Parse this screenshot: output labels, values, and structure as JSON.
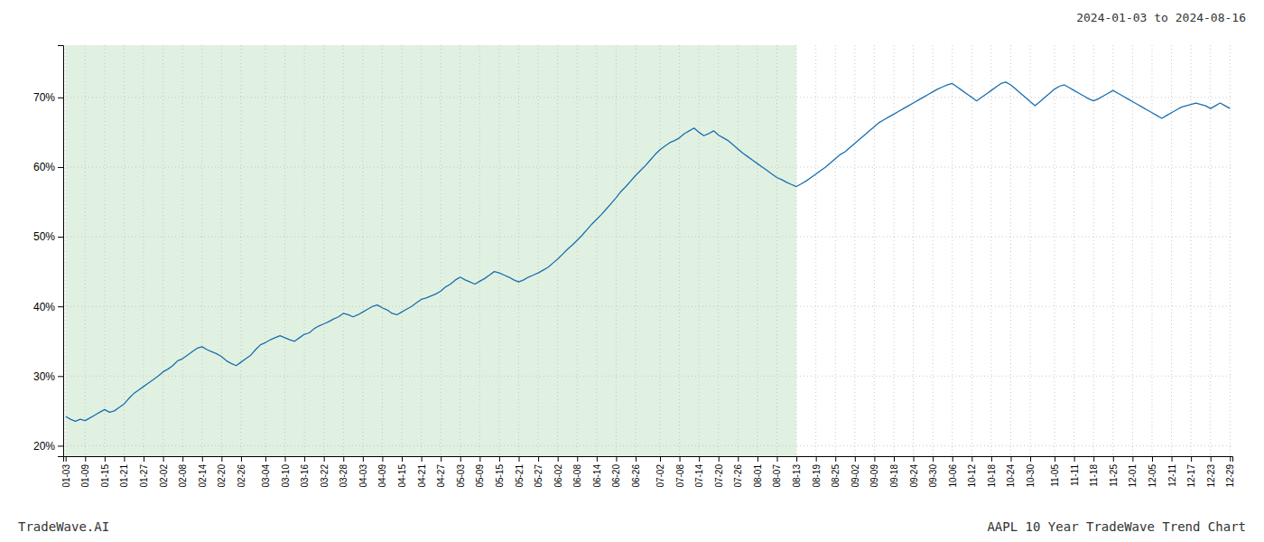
{
  "chart_data": {
    "type": "line",
    "title": "2024-01-03 to 2024-08-16",
    "annotations": [
      "TradeWave.AI",
      "AAPL 10 Year TradeWave Trend Chart"
    ],
    "color": "#1a6faf",
    "grid": true,
    "ylim": [
      0.185,
      0.775
    ],
    "yticks": [
      {
        "value": 0.2,
        "label": "20%"
      },
      {
        "value": 0.3,
        "label": "30%"
      },
      {
        "value": 0.4,
        "label": "40%"
      },
      {
        "value": 0.5,
        "label": "50%"
      },
      {
        "value": 0.6,
        "label": "60%"
      },
      {
        "value": 0.7,
        "label": "70%"
      }
    ],
    "shade": {
      "from": "01-03",
      "to": "08-13",
      "color": "#c8e6c8"
    },
    "categories": [
      "01-03",
      null,
      null,
      null,
      "01-09",
      null,
      null,
      null,
      "01-15",
      null,
      null,
      null,
      "01-21",
      null,
      null,
      null,
      "01-27",
      null,
      null,
      null,
      "02-02",
      null,
      null,
      null,
      "02-08",
      null,
      null,
      null,
      "02-14",
      null,
      null,
      null,
      "02-20",
      null,
      null,
      null,
      "02-26",
      null,
      null,
      null,
      null,
      "03-04",
      null,
      null,
      null,
      "03-10",
      null,
      null,
      null,
      "03-16",
      null,
      null,
      null,
      "03-22",
      null,
      null,
      null,
      "03-28",
      null,
      null,
      null,
      "04-03",
      null,
      null,
      null,
      "04-09",
      null,
      null,
      null,
      "04-15",
      null,
      null,
      null,
      "04-21",
      null,
      null,
      null,
      "04-27",
      null,
      null,
      null,
      "05-03",
      null,
      null,
      null,
      "05-09",
      null,
      null,
      null,
      "05-15",
      null,
      null,
      null,
      "05-21",
      null,
      null,
      null,
      "05-27",
      null,
      null,
      null,
      "06-02",
      null,
      null,
      null,
      "06-08",
      null,
      null,
      null,
      "06-14",
      null,
      null,
      null,
      "06-20",
      null,
      null,
      null,
      "06-26",
      null,
      null,
      null,
      null,
      "07-02",
      null,
      null,
      null,
      "07-08",
      null,
      null,
      null,
      "07-14",
      null,
      null,
      null,
      "07-20",
      null,
      null,
      null,
      "07-26",
      null,
      null,
      null,
      "08-01",
      null,
      null,
      null,
      "08-07",
      null,
      null,
      null,
      "08-13",
      null,
      null,
      null,
      "08-19",
      null,
      null,
      null,
      "08-25",
      null,
      null,
      null,
      "09-02",
      null,
      null,
      null,
      "09-09",
      null,
      null,
      null,
      "09-18",
      null,
      null,
      null,
      "09-24",
      null,
      null,
      null,
      "09-30",
      null,
      null,
      null,
      "10-06",
      null,
      null,
      null,
      "10-12",
      null,
      null,
      null,
      "10-18",
      null,
      null,
      null,
      "10-24",
      null,
      null,
      null,
      "10-30",
      null,
      null,
      null,
      null,
      "11-05",
      null,
      null,
      null,
      "11-11",
      null,
      null,
      null,
      "11-18",
      null,
      null,
      null,
      "11-25",
      null,
      null,
      null,
      "12-01",
      null,
      null,
      null,
      "12-05",
      null,
      null,
      null,
      "12-11",
      null,
      null,
      null,
      "12-17",
      null,
      null,
      null,
      "12-23",
      null,
      null,
      null,
      "12-29"
    ],
    "values": [
      0.242,
      0.238,
      0.235,
      0.238,
      0.236,
      0.24,
      0.244,
      0.248,
      0.252,
      0.248,
      0.25,
      0.255,
      0.26,
      0.268,
      0.275,
      0.28,
      0.285,
      0.29,
      0.295,
      0.3,
      0.306,
      0.31,
      0.315,
      0.322,
      0.325,
      0.33,
      0.335,
      0.34,
      0.342,
      0.338,
      0.335,
      0.332,
      0.328,
      0.322,
      0.318,
      0.315,
      0.32,
      0.325,
      0.33,
      0.338,
      0.345,
      0.348,
      0.352,
      0.355,
      0.358,
      0.355,
      0.352,
      0.35,
      0.355,
      0.36,
      0.362,
      0.368,
      0.372,
      0.375,
      0.378,
      0.382,
      0.385,
      0.39,
      0.388,
      0.385,
      0.388,
      0.392,
      0.396,
      0.4,
      0.402,
      0.398,
      0.395,
      0.39,
      0.388,
      0.392,
      0.396,
      0.4,
      0.405,
      0.41,
      0.412,
      0.415,
      0.418,
      0.422,
      0.428,
      0.432,
      0.438,
      0.442,
      0.438,
      0.435,
      0.432,
      0.436,
      0.44,
      0.445,
      0.45,
      0.448,
      0.445,
      0.442,
      0.438,
      0.435,
      0.438,
      0.442,
      0.445,
      0.448,
      0.452,
      0.456,
      0.462,
      0.468,
      0.475,
      0.482,
      0.488,
      0.495,
      0.502,
      0.51,
      0.518,
      0.525,
      0.532,
      0.54,
      0.548,
      0.556,
      0.565,
      0.572,
      0.58,
      0.588,
      0.595,
      0.602,
      0.61,
      0.618,
      0.625,
      0.63,
      0.635,
      0.638,
      0.642,
      0.648,
      0.652,
      0.656,
      0.65,
      0.645,
      0.648,
      0.652,
      0.646,
      0.642,
      0.638,
      0.632,
      0.626,
      0.62,
      0.615,
      0.61,
      0.605,
      0.6,
      0.595,
      0.59,
      0.585,
      0.582,
      0.578,
      0.575,
      0.572,
      0.576,
      0.58,
      0.585,
      0.59,
      0.595,
      0.6,
      0.606,
      0.612,
      0.618,
      0.622,
      0.628,
      0.634,
      0.64,
      0.646,
      0.652,
      0.658,
      0.664,
      0.668,
      0.672,
      0.676,
      0.68,
      0.684,
      0.688,
      0.692,
      0.696,
      0.7,
      0.704,
      0.708,
      0.712,
      0.715,
      0.718,
      0.72,
      0.715,
      0.71,
      0.705,
      0.7,
      0.695,
      0.7,
      0.705,
      0.71,
      0.715,
      0.72,
      0.722,
      0.718,
      0.712,
      0.706,
      0.7,
      0.694,
      0.688,
      0.694,
      0.7,
      0.706,
      0.712,
      0.716,
      0.718,
      0.714,
      0.71,
      0.706,
      0.702,
      0.698,
      0.695,
      0.698,
      0.702,
      0.706,
      0.71,
      0.706,
      0.702,
      0.698,
      0.694,
      0.69,
      0.686,
      0.682,
      0.678,
      0.674,
      0.67,
      0.674,
      0.678,
      0.682,
      0.686,
      0.688,
      0.69,
      0.692,
      0.69,
      0.688,
      0.684,
      0.688,
      0.692,
      0.688,
      0.684
    ]
  }
}
